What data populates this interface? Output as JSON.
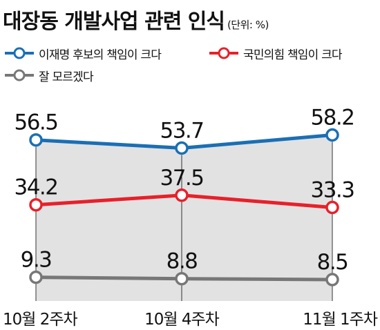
{
  "header": {
    "title": "대장동 개발사업 관련 인식",
    "unit": "(단위: %)"
  },
  "chart_data": {
    "type": "line",
    "title": "대장동 개발사업 관련 인식",
    "unit": "(단위: %)",
    "categories": [
      "10월 2주차",
      "10월 4주차",
      "11월 1주차"
    ],
    "series": [
      {
        "name": "이재명 후보의 책임이 크다",
        "color": "#1a6fb5",
        "values": [
          56.5,
          53.7,
          58.2
        ],
        "labels": [
          "56.5",
          "53.7",
          "58.2"
        ]
      },
      {
        "name": "국민의힘 책임이 크다",
        "color": "#e8202a",
        "values": [
          34.2,
          37.5,
          33.3
        ],
        "labels": [
          "34.2",
          "37.5",
          "33.3"
        ]
      },
      {
        "name": "잘 모르겠다",
        "color": "#777777",
        "values": [
          9.3,
          8.8,
          8.5
        ],
        "labels": [
          "9.3",
          "8.8",
          "8.5"
        ]
      }
    ],
    "legend": "top-left",
    "area_fill": "#e2e2e2",
    "grid": false
  }
}
